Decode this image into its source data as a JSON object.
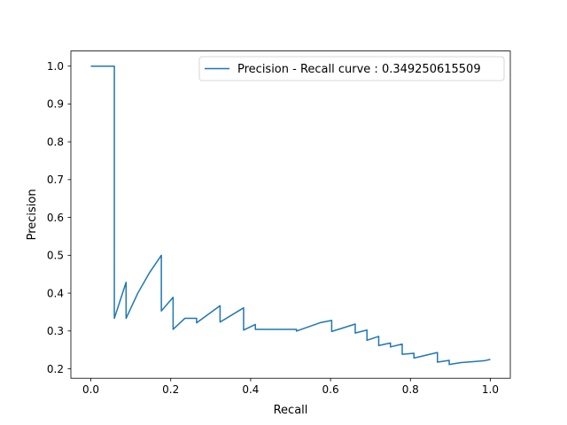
{
  "chart_data": {
    "type": "line",
    "title": "",
    "xlabel": "Recall",
    "ylabel": "Precision",
    "xlim": [
      -0.05,
      1.05
    ],
    "ylim": [
      0.175,
      1.04
    ],
    "grid": false,
    "legend_position": "upper right",
    "x_ticks": [
      0.0,
      0.2,
      0.4,
      0.6,
      0.8,
      1.0
    ],
    "x_tick_labels": [
      "0.0",
      "0.2",
      "0.4",
      "0.6",
      "0.8",
      "1.0"
    ],
    "y_ticks": [
      0.2,
      0.3,
      0.4,
      0.5,
      0.6,
      0.7,
      0.8,
      0.9,
      1.0
    ],
    "y_tick_labels": [
      "0.2",
      "0.3",
      "0.4",
      "0.5",
      "0.6",
      "0.7",
      "0.8",
      "0.9",
      "1.0"
    ],
    "series": [
      {
        "name": "Precision - Recall curve : 0.349250615509",
        "color": "#1f77b4",
        "x": [
          0.0,
          0.0588,
          0.0588,
          0.0882,
          0.0882,
          0.1176,
          0.1471,
          0.1765,
          0.1765,
          0.2059,
          0.2059,
          0.2353,
          0.2647,
          0.2647,
          0.3235,
          0.3235,
          0.3824,
          0.3824,
          0.4118,
          0.4118,
          0.5147,
          0.5147,
          0.5735,
          0.6029,
          0.6029,
          0.6618,
          0.6618,
          0.6912,
          0.6912,
          0.7206,
          0.7206,
          0.75,
          0.75,
          0.7794,
          0.7794,
          0.8088,
          0.8088,
          0.8676,
          0.8676,
          0.8971,
          0.8971,
          0.9265,
          0.9559,
          0.9853,
          1.0
        ],
        "y": [
          1.0,
          1.0,
          0.3333,
          0.4286,
          0.3333,
          0.4,
          0.4545,
          0.5,
          0.3529,
          0.3889,
          0.3043,
          0.3333,
          0.3333,
          0.3214,
          0.3667,
          0.3235,
          0.3611,
          0.3023,
          0.3171,
          0.3043,
          0.3043,
          0.2997,
          0.3217,
          0.3279,
          0.2987,
          0.3182,
          0.2946,
          0.3025,
          0.2753,
          0.2857,
          0.2614,
          0.2682,
          0.2578,
          0.2653,
          0.2385,
          0.2411,
          0.2285,
          0.2431,
          0.2175,
          0.2224,
          0.2113,
          0.2165,
          0.2187,
          0.2213,
          0.2249
        ]
      }
    ]
  }
}
